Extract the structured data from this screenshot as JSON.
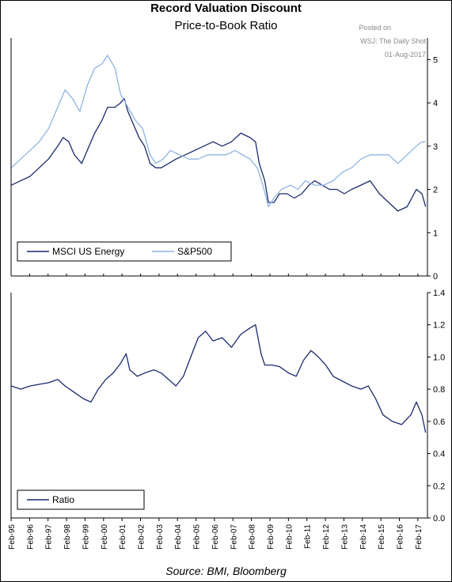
{
  "header": {
    "title": "Record Valuation Discount",
    "subtitle": "Price-to-Book Ratio",
    "posted_on": "Posted on",
    "posted_site": "WSJ: The Daily Shot",
    "posted_date": "01-Aug-2017"
  },
  "footer": {
    "source": "Source: BMI, Bloomberg"
  },
  "colors": {
    "energy": "#1a2a6c",
    "sp500": "#8fb4e3",
    "ratio": "#1a2a6c",
    "axis": "#000000"
  },
  "chart_data": [
    {
      "type": "line",
      "title": "Price-to-Book Ratio",
      "x_ticks": [
        "Feb-95",
        "Feb-96",
        "Feb-97",
        "Feb-98",
        "Feb-99",
        "Feb-00",
        "Feb-01",
        "Feb-02",
        "Feb-03",
        "Feb-04",
        "Feb-05",
        "Feb-06",
        "Feb-07",
        "Feb-08",
        "Feb-09",
        "Feb-10",
        "Feb-11",
        "Feb-12",
        "Feb-13",
        "Feb-14",
        "Feb-15",
        "Feb-16",
        "Feb-17"
      ],
      "x_range": [
        1995.08,
        2017.6
      ],
      "ylim": [
        0,
        5.5
      ],
      "y_ticks": [
        "0",
        "1",
        "2",
        "3",
        "4",
        "5"
      ],
      "y_tick_values": [
        0,
        1,
        2,
        3,
        4,
        5
      ],
      "axis_side": "right",
      "legend_position": "bottom-left",
      "series": [
        {
          "name": "MSCI US Energy",
          "color": "#1a2a6c",
          "points": [
            [
              1995.1,
              2.1
            ],
            [
              1995.6,
              2.2
            ],
            [
              1996.1,
              2.3
            ],
            [
              1996.6,
              2.5
            ],
            [
              1997.1,
              2.7
            ],
            [
              1997.6,
              3.0
            ],
            [
              1997.9,
              3.2
            ],
            [
              1998.2,
              3.1
            ],
            [
              1998.5,
              2.8
            ],
            [
              1998.9,
              2.6
            ],
            [
              1999.2,
              2.9
            ],
            [
              1999.6,
              3.3
            ],
            [
              2000.0,
              3.6
            ],
            [
              2000.3,
              3.9
            ],
            [
              2000.7,
              3.9
            ],
            [
              2001.0,
              4.0
            ],
            [
              2001.2,
              4.1
            ],
            [
              2001.4,
              3.8
            ],
            [
              2001.7,
              3.5
            ],
            [
              2002.0,
              3.2
            ],
            [
              2002.3,
              3.0
            ],
            [
              2002.6,
              2.6
            ],
            [
              2002.9,
              2.5
            ],
            [
              2003.2,
              2.5
            ],
            [
              2003.6,
              2.6
            ],
            [
              2004.0,
              2.7
            ],
            [
              2004.5,
              2.8
            ],
            [
              2005.0,
              2.9
            ],
            [
              2005.5,
              3.0
            ],
            [
              2006.0,
              3.1
            ],
            [
              2006.5,
              3.0
            ],
            [
              2007.0,
              3.1
            ],
            [
              2007.5,
              3.3
            ],
            [
              2008.0,
              3.2
            ],
            [
              2008.3,
              3.1
            ],
            [
              2008.5,
              2.6
            ],
            [
              2008.8,
              2.2
            ],
            [
              2009.0,
              1.7
            ],
            [
              2009.3,
              1.7
            ],
            [
              2009.6,
              1.9
            ],
            [
              2010.0,
              1.9
            ],
            [
              2010.4,
              1.8
            ],
            [
              2010.8,
              1.9
            ],
            [
              2011.2,
              2.1
            ],
            [
              2011.5,
              2.2
            ],
            [
              2011.9,
              2.1
            ],
            [
              2012.3,
              2.0
            ],
            [
              2012.7,
              2.0
            ],
            [
              2013.1,
              1.9
            ],
            [
              2013.5,
              2.0
            ],
            [
              2014.0,
              2.1
            ],
            [
              2014.5,
              2.2
            ],
            [
              2015.0,
              1.9
            ],
            [
              2015.5,
              1.7
            ],
            [
              2016.0,
              1.5
            ],
            [
              2016.5,
              1.6
            ],
            [
              2017.0,
              2.0
            ],
            [
              2017.3,
              1.9
            ],
            [
              2017.5,
              1.6
            ]
          ]
        },
        {
          "name": "S&P500",
          "color": "#8fb4e3",
          "points": [
            [
              1995.1,
              2.5
            ],
            [
              1995.6,
              2.7
            ],
            [
              1996.1,
              2.9
            ],
            [
              1996.6,
              3.1
            ],
            [
              1997.1,
              3.4
            ],
            [
              1997.6,
              3.9
            ],
            [
              1998.0,
              4.3
            ],
            [
              1998.4,
              4.1
            ],
            [
              1998.8,
              3.8
            ],
            [
              1999.2,
              4.4
            ],
            [
              1999.6,
              4.8
            ],
            [
              2000.0,
              4.9
            ],
            [
              2000.3,
              5.1
            ],
            [
              2000.7,
              4.8
            ],
            [
              2001.0,
              4.2
            ],
            [
              2001.4,
              3.9
            ],
            [
              2001.8,
              3.6
            ],
            [
              2002.2,
              3.4
            ],
            [
              2002.6,
              2.8
            ],
            [
              2002.9,
              2.6
            ],
            [
              2003.3,
              2.7
            ],
            [
              2003.7,
              2.9
            ],
            [
              2004.2,
              2.8
            ],
            [
              2004.7,
              2.7
            ],
            [
              2005.2,
              2.7
            ],
            [
              2005.7,
              2.8
            ],
            [
              2006.2,
              2.8
            ],
            [
              2006.7,
              2.8
            ],
            [
              2007.2,
              2.9
            ],
            [
              2007.6,
              2.8
            ],
            [
              2008.0,
              2.7
            ],
            [
              2008.4,
              2.5
            ],
            [
              2008.7,
              2.1
            ],
            [
              2009.0,
              1.6
            ],
            [
              2009.3,
              1.8
            ],
            [
              2009.7,
              2.0
            ],
            [
              2010.2,
              2.1
            ],
            [
              2010.6,
              2.0
            ],
            [
              2011.0,
              2.2
            ],
            [
              2011.5,
              2.1
            ],
            [
              2012.0,
              2.1
            ],
            [
              2012.5,
              2.2
            ],
            [
              2013.0,
              2.4
            ],
            [
              2013.5,
              2.5
            ],
            [
              2014.0,
              2.7
            ],
            [
              2014.5,
              2.8
            ],
            [
              2015.0,
              2.8
            ],
            [
              2015.5,
              2.8
            ],
            [
              2016.0,
              2.6
            ],
            [
              2016.5,
              2.8
            ],
            [
              2017.0,
              3.0
            ],
            [
              2017.3,
              3.1
            ],
            [
              2017.5,
              3.1
            ]
          ]
        }
      ]
    },
    {
      "type": "line",
      "x_ticks_shared": true,
      "x_range": [
        1995.08,
        2017.6
      ],
      "ylim": [
        0,
        1.4
      ],
      "y_ticks": [
        "0.0",
        "0.2",
        "0.4",
        "0.6",
        "0.8",
        "1.0",
        "1.2",
        "1.4"
      ],
      "y_tick_values": [
        0,
        0.2,
        0.4,
        0.6,
        0.8,
        1.0,
        1.2,
        1.4
      ],
      "axis_side": "right",
      "legend_position": "bottom-left",
      "series": [
        {
          "name": "Ratio",
          "color": "#1a2a6c",
          "points": [
            [
              1995.1,
              0.82
            ],
            [
              1995.6,
              0.8
            ],
            [
              1996.1,
              0.82
            ],
            [
              1996.6,
              0.83
            ],
            [
              1997.1,
              0.84
            ],
            [
              1997.6,
              0.86
            ],
            [
              1998.0,
              0.82
            ],
            [
              1998.5,
              0.78
            ],
            [
              1999.0,
              0.74
            ],
            [
              1999.4,
              0.72
            ],
            [
              1999.8,
              0.8
            ],
            [
              2000.2,
              0.86
            ],
            [
              2000.6,
              0.9
            ],
            [
              2001.0,
              0.96
            ],
            [
              2001.3,
              1.02
            ],
            [
              2001.5,
              0.92
            ],
            [
              2001.9,
              0.88
            ],
            [
              2002.3,
              0.9
            ],
            [
              2002.8,
              0.92
            ],
            [
              2003.2,
              0.9
            ],
            [
              2003.6,
              0.86
            ],
            [
              2004.0,
              0.82
            ],
            [
              2004.4,
              0.88
            ],
            [
              2004.8,
              1.0
            ],
            [
              2005.2,
              1.12
            ],
            [
              2005.6,
              1.16
            ],
            [
              2006.0,
              1.1
            ],
            [
              2006.5,
              1.12
            ],
            [
              2007.0,
              1.06
            ],
            [
              2007.5,
              1.14
            ],
            [
              2008.0,
              1.18
            ],
            [
              2008.3,
              1.2
            ],
            [
              2008.6,
              1.02
            ],
            [
              2008.8,
              0.95
            ],
            [
              2009.2,
              0.95
            ],
            [
              2009.6,
              0.94
            ],
            [
              2010.1,
              0.9
            ],
            [
              2010.5,
              0.88
            ],
            [
              2010.9,
              0.98
            ],
            [
              2011.3,
              1.04
            ],
            [
              2011.7,
              1.0
            ],
            [
              2012.1,
              0.95
            ],
            [
              2012.5,
              0.88
            ],
            [
              2013.0,
              0.85
            ],
            [
              2013.5,
              0.82
            ],
            [
              2014.0,
              0.8
            ],
            [
              2014.4,
              0.82
            ],
            [
              2014.8,
              0.74
            ],
            [
              2015.2,
              0.64
            ],
            [
              2015.7,
              0.6
            ],
            [
              2016.2,
              0.58
            ],
            [
              2016.7,
              0.64
            ],
            [
              2017.0,
              0.72
            ],
            [
              2017.3,
              0.64
            ],
            [
              2017.5,
              0.53
            ]
          ]
        }
      ]
    }
  ]
}
